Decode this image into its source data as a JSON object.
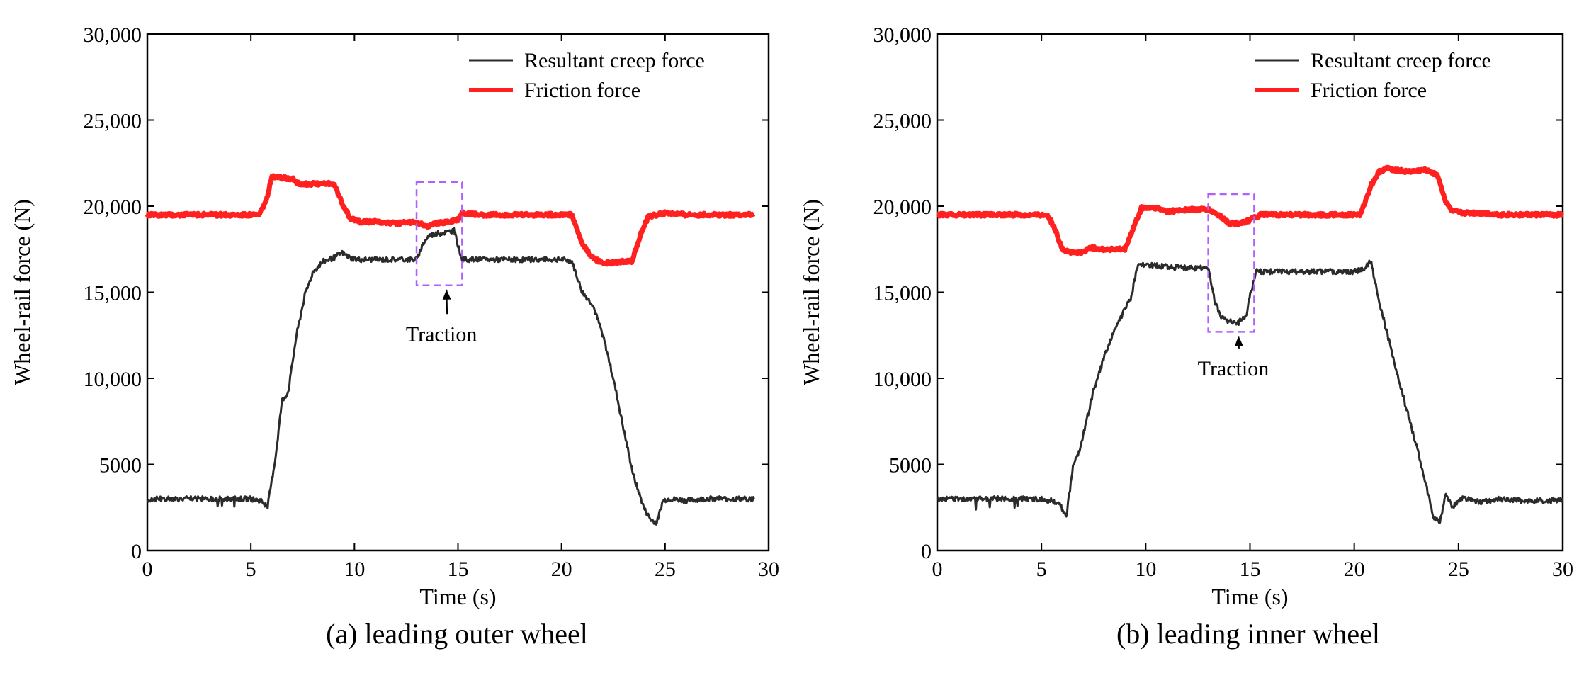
{
  "chart_data": [
    {
      "type": "line",
      "caption": "(a) leading outer wheel",
      "xlabel": "Time (s)",
      "ylabel": "Wheel-rail force (N)",
      "xlim": [
        0,
        30
      ],
      "ylim": [
        0,
        30000
      ],
      "xticks": [
        0,
        5,
        10,
        15,
        20,
        25,
        30
      ],
      "xtick_labels": [
        "0",
        "5",
        "10",
        "15",
        "20",
        "25",
        "30"
      ],
      "yticks": [
        0,
        5000,
        10000,
        15000,
        20000,
        25000,
        30000
      ],
      "ytick_labels": [
        "0",
        "5000",
        "10,000",
        "15,000",
        "20,000",
        "25,000",
        "30,000"
      ],
      "legend": [
        "Resultant creep force",
        "Friction force"
      ],
      "legend_position": "top-right",
      "series": [
        {
          "name": "Resultant creep force",
          "color": "#2b2b2b",
          "x": [
            0,
            0.3,
            5.0,
            5.5,
            5.8,
            6.2,
            6.5,
            6.8,
            7.2,
            7.6,
            8.0,
            8.5,
            9.0,
            9.4,
            9.8,
            10.2,
            13.0,
            13.3,
            13.6,
            14.0,
            14.5,
            14.8,
            15.2,
            20.0,
            20.5,
            21.0,
            21.5,
            22.0,
            22.5,
            23.0,
            23.5,
            24.0,
            24.3,
            24.6,
            24.9,
            25.2,
            26.0,
            27.0,
            28.0,
            29.3
          ],
          "y": [
            2900,
            3000,
            3000,
            2900,
            2500,
            5500,
            8700,
            9200,
            12500,
            14800,
            16200,
            16800,
            17000,
            17300,
            17000,
            16900,
            16900,
            17800,
            18300,
            18400,
            18500,
            18600,
            16900,
            16900,
            16800,
            15000,
            14300,
            12500,
            10000,
            7000,
            4200,
            2400,
            1800,
            1600,
            2900,
            3000,
            2900,
            3000,
            3000,
            3000
          ],
          "noise": 150
        },
        {
          "name": "Friction force",
          "color": "#ff2020",
          "x": [
            0,
            5.4,
            5.8,
            6.0,
            7.0,
            7.3,
            8.0,
            9.0,
            9.4,
            9.8,
            10.2,
            11.0,
            12.0,
            13.0,
            13.5,
            14.0,
            14.5,
            15.0,
            15.2,
            16.0,
            20.5,
            21.0,
            21.5,
            22.0,
            22.5,
            23.0,
            23.4,
            23.8,
            24.2,
            25.0,
            26.0,
            29.3
          ],
          "y": [
            19500,
            19500,
            20500,
            21700,
            21600,
            21300,
            21300,
            21300,
            20200,
            19300,
            19100,
            19100,
            19000,
            19100,
            18800,
            19000,
            19100,
            19200,
            19600,
            19500,
            19500,
            17800,
            17000,
            16700,
            16700,
            16800,
            16800,
            18300,
            19400,
            19600,
            19500,
            19500
          ],
          "noise": 90
        }
      ],
      "annotation": {
        "text": "Traction",
        "box_x": [
          13.0,
          15.2
        ],
        "box_y": [
          15400,
          21400
        ],
        "text_x": 14.2,
        "text_y": 12500
      }
    },
    {
      "type": "line",
      "caption": "(b) leading inner wheel",
      "xlabel": "Time (s)",
      "ylabel": "Wheel-rail force (N)",
      "xlim": [
        0,
        30
      ],
      "ylim": [
        0,
        30000
      ],
      "xticks": [
        0,
        5,
        10,
        15,
        20,
        25,
        30
      ],
      "xtick_labels": [
        "0",
        "5",
        "10",
        "15",
        "20",
        "25",
        "30"
      ],
      "yticks": [
        0,
        5000,
        10000,
        15000,
        20000,
        25000,
        30000
      ],
      "ytick_labels": [
        "0",
        "5000",
        "10,000",
        "15,000",
        "20,000",
        "25,000",
        "30,000"
      ],
      "legend": [
        "Resultant creep force",
        "Friction force"
      ],
      "legend_position": "top-right",
      "series": [
        {
          "name": "Resultant creep force",
          "color": "#2b2b2b",
          "x": [
            0,
            5.0,
            5.8,
            6.2,
            6.5,
            6.8,
            7.5,
            8.0,
            8.5,
            9.0,
            9.3,
            9.6,
            10.0,
            12.0,
            13.0,
            13.3,
            13.6,
            14.0,
            14.4,
            14.8,
            15.0,
            15.3,
            16.0,
            20.0,
            20.5,
            20.8,
            21.2,
            22.0,
            23.0,
            23.5,
            23.8,
            24.1,
            24.4,
            24.7,
            25.2,
            26.0,
            27.0,
            28.0,
            30.0
          ],
          "y": [
            3000,
            3000,
            2800,
            2000,
            4800,
            5700,
            9300,
            11200,
            12800,
            14000,
            14700,
            16500,
            16600,
            16400,
            16400,
            14500,
            13600,
            13300,
            13200,
            13600,
            14800,
            16200,
            16200,
            16200,
            16400,
            16800,
            14500,
            10500,
            6000,
            3500,
            2000,
            1600,
            3300,
            2500,
            3100,
            2800,
            3000,
            2900,
            2900
          ],
          "noise": 150
        },
        {
          "name": "Friction force",
          "color": "#ff2020",
          "x": [
            0,
            5.3,
            5.7,
            6.0,
            6.5,
            7.0,
            7.3,
            8.0,
            9.0,
            9.3,
            9.8,
            10.5,
            11.0,
            12.0,
            13.0,
            13.3,
            13.6,
            14.0,
            14.5,
            15.0,
            15.5,
            16.0,
            20.3,
            20.8,
            21.2,
            21.6,
            22.5,
            23.5,
            24.0,
            24.4,
            24.7,
            25.2,
            26.0,
            27.0,
            30.0
          ],
          "y": [
            19500,
            19500,
            18500,
            17500,
            17300,
            17300,
            17600,
            17500,
            17500,
            18400,
            19900,
            19900,
            19700,
            19800,
            19800,
            19600,
            19400,
            19000,
            19000,
            19200,
            19500,
            19500,
            19500,
            21200,
            22000,
            22200,
            22000,
            22100,
            21800,
            20200,
            19700,
            19600,
            19600,
            19500,
            19500
          ],
          "noise": 90
        }
      ],
      "annotation": {
        "text": "Traction",
        "box_x": [
          13.0,
          15.2
        ],
        "box_y": [
          12700,
          20700
        ],
        "text_x": 14.2,
        "text_y": 10500
      }
    }
  ]
}
